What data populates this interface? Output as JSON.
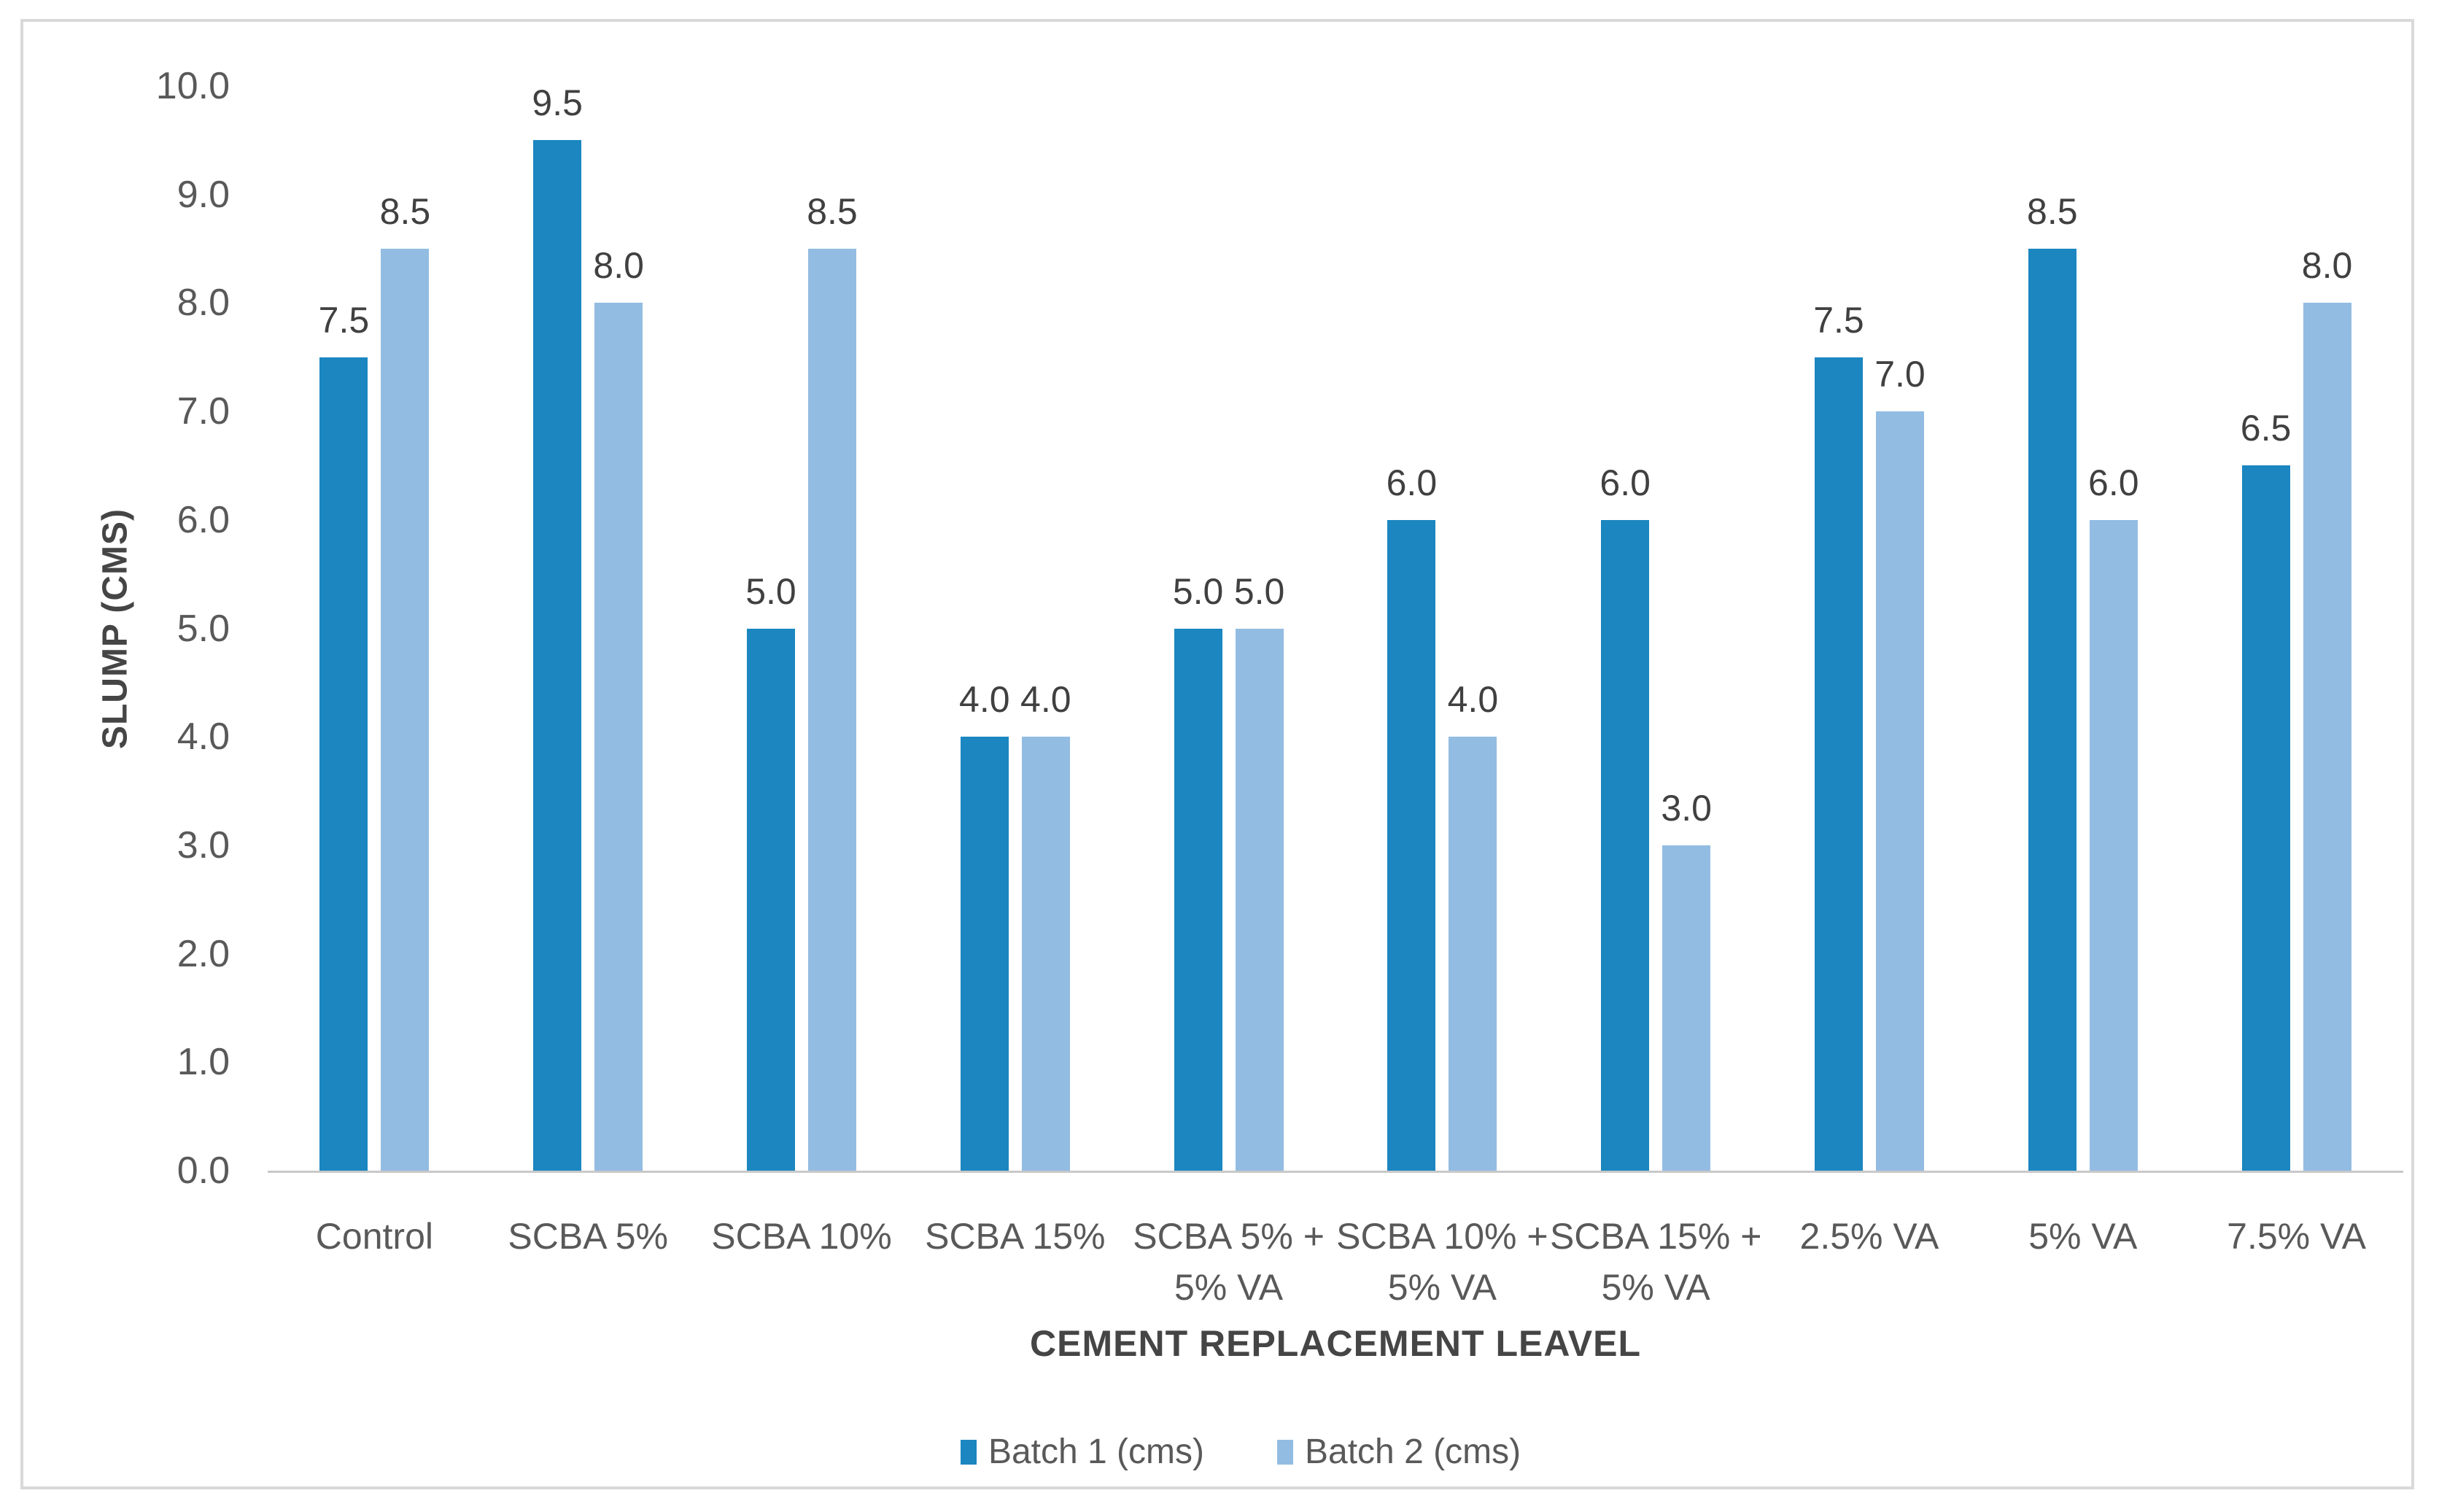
{
  "chart_data": {
    "type": "bar",
    "title": "",
    "categories": [
      "Control",
      "SCBA 5%",
      "SCBA 10%",
      "SCBA 15%",
      "SCBA 5% +\n5% VA",
      "SCBA 10% +\n5% VA",
      "SCBA 15% +\n5% VA",
      "2.5% VA",
      "5% VA",
      "7.5% VA"
    ],
    "series": [
      {
        "name": "Batch 1 (cms)",
        "color": "#1b86c0",
        "values": [
          7.5,
          9.5,
          5.0,
          4.0,
          5.0,
          6.0,
          6.0,
          7.5,
          8.5,
          6.5
        ]
      },
      {
        "name": "Batch 2 (cms)",
        "color": "#93bce2",
        "values": [
          8.5,
          8.0,
          8.5,
          4.0,
          5.0,
          4.0,
          3.0,
          7.0,
          6.0,
          8.0
        ]
      }
    ],
    "xlabel": "CEMENT REPLACEMENT LEAVEL",
    "ylabel": "SLUMP (CMS)",
    "ylim": [
      0,
      10
    ],
    "ytick_step": 1.0,
    "ytick_decimals": 1,
    "data_label_decimals": 1,
    "grid": false,
    "legend_position": "bottom"
  },
  "colors": {
    "chart_border": "#d9d9d9",
    "axis_line": "#c9c9c9",
    "tick_text": "#595959",
    "data_label_text": "#404040",
    "axis_title_text": "#454545",
    "background": "#ffffff"
  }
}
